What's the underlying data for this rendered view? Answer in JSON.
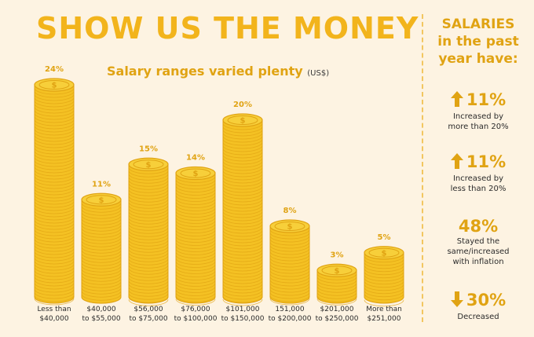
{
  "header": {
    "title": "SHOW US THE MONEY",
    "subtitle": "Salary ranges varied plenty",
    "unit": "(US$)"
  },
  "colors": {
    "background": "#fdf3e2",
    "accent": "#f2b41c",
    "coin_fill": "#f4c123",
    "coin_edge": "#e0a313"
  },
  "chart_data": {
    "type": "bar",
    "categories": [
      [
        "Less than",
        "$40,000"
      ],
      [
        "$40,000",
        "to $55,000"
      ],
      [
        "$56,000",
        "to $75,000"
      ],
      [
        "$76,000",
        "to $100,000"
      ],
      [
        "$101,000",
        "to $150,000"
      ],
      [
        "151,000",
        "to $200,000"
      ],
      [
        "$201,000",
        "to $250,000"
      ],
      [
        "More than",
        "$251,000"
      ]
    ],
    "values": [
      24,
      11,
      15,
      14,
      20,
      8,
      3,
      5
    ],
    "value_labels": [
      "24%",
      "11%",
      "15%",
      "14%",
      "20%",
      "8%",
      "3%",
      "5%"
    ],
    "ylim": [
      0,
      24
    ]
  },
  "sidebar": {
    "heading": [
      "SALARIES",
      "in the past",
      "year have:"
    ],
    "stats": [
      {
        "value": "11%",
        "label": [
          "Increased by",
          "more than 20%"
        ],
        "icon": "arrow-up-icon"
      },
      {
        "value": "11%",
        "label": [
          "Increased by",
          "less than 20%"
        ],
        "icon": "arrow-up-icon"
      },
      {
        "value": "48%",
        "label": [
          "Stayed the",
          "same/increased",
          "with inflation"
        ],
        "icon": ""
      },
      {
        "value": "30%",
        "label": [
          "Decreased"
        ],
        "icon": "arrow-down-icon"
      }
    ]
  }
}
